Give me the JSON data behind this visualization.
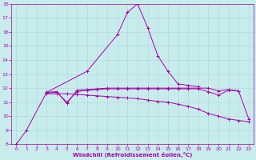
{
  "xlabel": "Windchill (Refroidissement éolien,°C)",
  "bg_color": "#c8ecec",
  "grid_color": "#a8dada",
  "line_color": "#aa00aa",
  "xlim": [
    -0.5,
    23.5
  ],
  "ylim": [
    8,
    18
  ],
  "xticks": [
    0,
    1,
    2,
    3,
    4,
    5,
    6,
    7,
    8,
    9,
    10,
    11,
    12,
    13,
    14,
    15,
    16,
    17,
    18,
    19,
    20,
    21,
    22,
    23
  ],
  "yticks": [
    8,
    9,
    10,
    11,
    12,
    13,
    14,
    15,
    16,
    17,
    18
  ],
  "line1": {
    "x": [
      0,
      1,
      3,
      7,
      10,
      11,
      12,
      13,
      14,
      15,
      16,
      17,
      18
    ],
    "y": [
      8.0,
      9.0,
      11.7,
      13.2,
      15.8,
      17.4,
      18.0,
      16.3,
      14.3,
      13.2,
      12.3,
      12.2,
      12.1
    ]
  },
  "line2": {
    "x": [
      3,
      4,
      5,
      6,
      7,
      8,
      9,
      10,
      11,
      12,
      13,
      14,
      15,
      16,
      17,
      18,
      19,
      20,
      21,
      22,
      23
    ],
    "y": [
      11.7,
      11.75,
      10.9,
      11.85,
      11.9,
      11.95,
      12.0,
      12.0,
      12.0,
      12.0,
      12.0,
      12.0,
      12.0,
      12.0,
      12.0,
      12.0,
      12.0,
      11.8,
      11.9,
      11.8,
      9.8
    ]
  },
  "line3": {
    "x": [
      3,
      4,
      5,
      6,
      7,
      8,
      9,
      10,
      11,
      12,
      13,
      14,
      15,
      16,
      17,
      18,
      19,
      20,
      21,
      22,
      23
    ],
    "y": [
      11.6,
      11.6,
      11.6,
      11.55,
      11.5,
      11.45,
      11.4,
      11.35,
      11.3,
      11.25,
      11.15,
      11.05,
      11.0,
      10.85,
      10.7,
      10.5,
      10.2,
      10.0,
      9.8,
      9.7,
      9.6
    ]
  },
  "line4": {
    "x": [
      3,
      4,
      5,
      6,
      7,
      8,
      9,
      10,
      11,
      12,
      13,
      14,
      15,
      16,
      17,
      18,
      19,
      20,
      21,
      22
    ],
    "y": [
      11.65,
      11.7,
      11.0,
      11.75,
      11.85,
      11.9,
      11.95,
      11.95,
      11.95,
      11.95,
      11.95,
      11.95,
      11.95,
      11.95,
      11.95,
      11.95,
      11.75,
      11.5,
      11.85,
      11.8
    ]
  }
}
